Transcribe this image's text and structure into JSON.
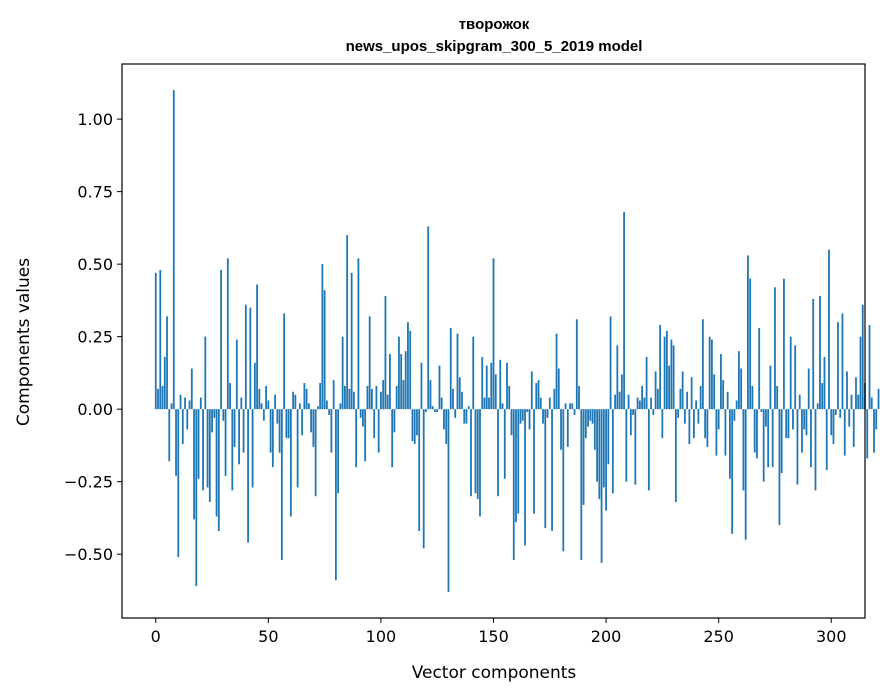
{
  "chart_data": {
    "type": "bar",
    "title": "творожок",
    "subtitle": "news_upos_skipgram_300_5_2019 model",
    "xlabel": "Vector components",
    "ylabel": "Components values",
    "xlim": [
      -15,
      315
    ],
    "ylim": [
      -0.72,
      1.19
    ],
    "xticks": [
      0,
      50,
      100,
      150,
      200,
      250,
      300
    ],
    "xtick_labels": [
      "0",
      "50",
      "100",
      "150",
      "200",
      "250",
      "300"
    ],
    "yticks": [
      -0.5,
      -0.25,
      0.0,
      0.25,
      0.5,
      0.75,
      1.0
    ],
    "ytick_labels": [
      "−0.50",
      "−0.25",
      "0.00",
      "0.25",
      "0.50",
      "0.75",
      "1.00"
    ],
    "bar_color": "#1f77b4",
    "grid": false,
    "values": [
      0.47,
      0.07,
      0.48,
      0.08,
      0.18,
      0.32,
      -0.18,
      0.02,
      1.1,
      -0.23,
      -0.51,
      0.05,
      -0.12,
      0.04,
      -0.07,
      0.03,
      0.14,
      -0.38,
      -0.61,
      -0.24,
      0.04,
      -0.28,
      0.25,
      -0.27,
      -0.32,
      -0.08,
      -0.03,
      -0.37,
      -0.42,
      0.48,
      -0.04,
      -0.23,
      0.52,
      0.09,
      -0.28,
      -0.13,
      0.24,
      -0.19,
      0.04,
      -0.15,
      0.36,
      -0.46,
      0.35,
      -0.27,
      0.16,
      0.43,
      0.07,
      0.02,
      -0.04,
      0.08,
      0.03,
      -0.15,
      -0.2,
      0.05,
      -0.05,
      -0.15,
      -0.52,
      0.33,
      -0.1,
      -0.1,
      -0.37,
      0.06,
      0.05,
      -0.27,
      0.02,
      -0.09,
      0.09,
      0.07,
      0.02,
      -0.08,
      -0.13,
      -0.3,
      0.01,
      0.09,
      0.5,
      0.41,
      0.03,
      -0.02,
      -0.15,
      0.1,
      -0.59,
      -0.29,
      0.02,
      0.25,
      0.08,
      0.6,
      0.07,
      0.47,
      0.06,
      -0.2,
      0.52,
      -0.03,
      -0.06,
      -0.18,
      0.08,
      0.32,
      0.07,
      -0.1,
      0.08,
      -0.15,
      0.06,
      0.1,
      0.39,
      0.05,
      0.19,
      -0.2,
      -0.08,
      0.08,
      0.25,
      0.19,
      0.1,
      0.2,
      0.3,
      0.27,
      -0.11,
      -0.12,
      -0.09,
      -0.42,
      0.16,
      -0.48,
      -0.01,
      0.63,
      0.1,
      0.01,
      -0.01,
      -0.01,
      0.15,
      0.04,
      -0.07,
      -0.12,
      -0.63,
      0.28,
      0.07,
      -0.03,
      0.26,
      0.11,
      0.06,
      -0.05,
      -0.05,
      0.01,
      -0.3,
      0.25,
      -0.29,
      -0.31,
      -0.37,
      0.18,
      0.04,
      0.15,
      0.04,
      0.16,
      0.52,
      0.12,
      -0.3,
      0.17,
      0.02,
      -0.24,
      0.16,
      0.08,
      -0.09,
      -0.52,
      -0.39,
      -0.36,
      -0.05,
      -0.04,
      -0.47,
      -0.01,
      -0.07,
      0.13,
      -0.36,
      0.09,
      0.1,
      0.04,
      -0.05,
      -0.41,
      -0.03,
      0.04,
      -0.42,
      0.07,
      0.26,
      0.14,
      -0.14,
      -0.49,
      0.02,
      -0.13,
      0.02,
      0.02,
      -0.02,
      0.31,
      0.08,
      -0.52,
      -0.33,
      -0.1,
      -0.06,
      -0.04,
      -0.05,
      -0.14,
      -0.25,
      -0.31,
      -0.53,
      -0.27,
      -0.35,
      -0.19,
      0.32,
      -0.29,
      0.05,
      0.22,
      0.06,
      0.12,
      0.68,
      -0.25,
      0.05,
      -0.09,
      -0.02,
      -0.26,
      0.04,
      0.03,
      0.08,
      0.04,
      0.18,
      -0.28,
      0.04,
      -0.02,
      0.13,
      0.07,
      0.29,
      -0.1,
      0.25,
      0.27,
      0.15,
      0.24,
      0.22,
      -0.32,
      -0.03,
      0.07,
      0.13,
      -0.05,
      0.06,
      -0.12,
      0.11,
      -0.1,
      0.03,
      -0.05,
      0.08,
      0.31,
      -0.1,
      -0.13,
      0.25,
      0.24,
      0.12,
      -0.16,
      -0.07,
      0.19,
      0.1,
      -0.16,
      0.06,
      -0.24,
      -0.43,
      -0.04,
      0.03,
      0.2,
      0.14,
      -0.28,
      -0.45,
      0.53,
      0.45,
      0.08,
      -0.15,
      -0.17,
      0.28,
      -0.01,
      -0.25,
      -0.06,
      -0.2,
      0.15,
      -0.2,
      0.42,
      0.08,
      -0.4,
      -0.22,
      0.45,
      -0.1,
      -0.1,
      0.25,
      -0.07,
      0.22,
      -0.26,
      0.05,
      -0.15,
      -0.07,
      -0.09,
      0.14,
      -0.2,
      0.38,
      -0.28,
      0.02,
      0.39,
      0.09,
      0.18,
      -0.21,
      0.55,
      -0.09,
      -0.12,
      -0.02,
      0.3,
      -0.03,
      0.33,
      -0.16,
      0.13,
      -0.06,
      0.05,
      -0.13,
      0.11,
      0.05,
      0.25,
      0.36,
      0.09,
      -0.17,
      0.29,
      0.04,
      -0.15,
      -0.07,
      0.07
    ]
  }
}
